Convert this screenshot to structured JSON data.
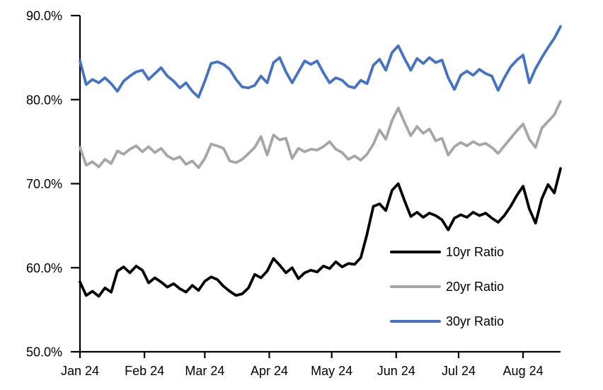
{
  "chart_data": {
    "type": "line",
    "title": "",
    "xlabel": "",
    "ylabel": "",
    "ylim": [
      50,
      90
    ],
    "grid": false,
    "legend_position": "inside-lower-right",
    "y_axis": {
      "tick_values": [
        90,
        80,
        70,
        60,
        50
      ],
      "tick_labels": [
        "90.0%",
        "80.0%",
        "70.0%",
        "60.0%",
        "50.0%"
      ]
    },
    "x_axis": {
      "tick_labels": [
        "Jan 24",
        "Feb 24",
        "Mar 24",
        "Apr 24",
        "May 24",
        "Jun 24",
        "Jul 24",
        "Aug 24"
      ],
      "tick_days": [
        0,
        31,
        60,
        91,
        121,
        152,
        182,
        213
      ],
      "x_start_label": "Jan 24",
      "x_end_day": 231,
      "x_step_days": 3
    },
    "series": [
      {
        "name": "10yr Ratio",
        "color": "#000000",
        "values": [
          58.3,
          56.7,
          57.2,
          56.6,
          57.6,
          57.1,
          59.6,
          60.1,
          59.4,
          60.2,
          59.7,
          58.2,
          58.8,
          58.3,
          57.7,
          58.1,
          57.5,
          57.1,
          57.9,
          57.3,
          58.4,
          58.9,
          58.6,
          57.8,
          57.2,
          56.7,
          56.9,
          57.6,
          59.2,
          58.8,
          59.6,
          61.1,
          60.3,
          59.4,
          60.0,
          58.7,
          59.4,
          59.7,
          59.5,
          60.2,
          59.9,
          60.7,
          60.1,
          60.5,
          60.4,
          61.2,
          64.0,
          67.3,
          67.6,
          66.8,
          69.2,
          70.0,
          68.0,
          66.1,
          66.6,
          66.0,
          66.5,
          66.2,
          65.7,
          64.5,
          65.9,
          66.3,
          66.0,
          66.6,
          66.2,
          66.5,
          65.9,
          65.4,
          66.2,
          67.3,
          68.6,
          69.7,
          67.0,
          65.3,
          68.2,
          69.9,
          68.9,
          71.8
        ]
      },
      {
        "name": "20yr Ratio",
        "color": "#A6A6A6",
        "values": [
          74.3,
          72.2,
          72.6,
          72.0,
          72.9,
          72.4,
          73.9,
          73.5,
          74.1,
          74.5,
          73.8,
          74.4,
          73.7,
          74.2,
          73.3,
          72.9,
          73.2,
          72.3,
          72.7,
          71.9,
          73.0,
          74.7,
          74.5,
          74.2,
          72.7,
          72.5,
          72.9,
          73.6,
          74.3,
          75.6,
          73.4,
          75.8,
          75.2,
          75.4,
          73.0,
          74.2,
          73.8,
          74.1,
          74.0,
          74.4,
          75.0,
          74.1,
          73.7,
          72.9,
          73.3,
          72.8,
          73.5,
          74.7,
          76.4,
          75.3,
          77.5,
          79.0,
          77.3,
          75.7,
          76.8,
          76.0,
          76.5,
          75.1,
          75.4,
          73.4,
          74.4,
          74.9,
          74.5,
          75.0,
          74.6,
          74.8,
          74.3,
          73.6,
          74.5,
          75.4,
          76.3,
          77.1,
          75.3,
          74.3,
          76.6,
          77.4,
          78.2,
          79.8
        ]
      },
      {
        "name": "30yr Ratio",
        "color": "#4472C4",
        "values": [
          84.6,
          81.8,
          82.4,
          82.0,
          82.6,
          81.9,
          81.0,
          82.2,
          82.8,
          83.3,
          83.5,
          82.4,
          83.1,
          83.8,
          82.8,
          82.2,
          81.4,
          82.0,
          81.0,
          80.3,
          82.2,
          84.3,
          84.5,
          84.2,
          83.6,
          82.4,
          81.5,
          81.4,
          81.7,
          82.8,
          82.0,
          84.4,
          85.0,
          83.3,
          82.0,
          83.3,
          84.6,
          84.2,
          84.6,
          83.2,
          82.0,
          82.6,
          82.3,
          81.6,
          81.4,
          82.3,
          81.9,
          84.1,
          84.8,
          83.5,
          85.6,
          86.4,
          84.9,
          83.5,
          84.9,
          84.3,
          85.0,
          84.4,
          84.7,
          82.6,
          81.2,
          82.9,
          83.4,
          82.9,
          83.6,
          83.1,
          82.8,
          81.1,
          82.6,
          83.9,
          84.7,
          85.3,
          82.0,
          83.7,
          85.0,
          86.2,
          87.3,
          88.7
        ]
      }
    ]
  }
}
